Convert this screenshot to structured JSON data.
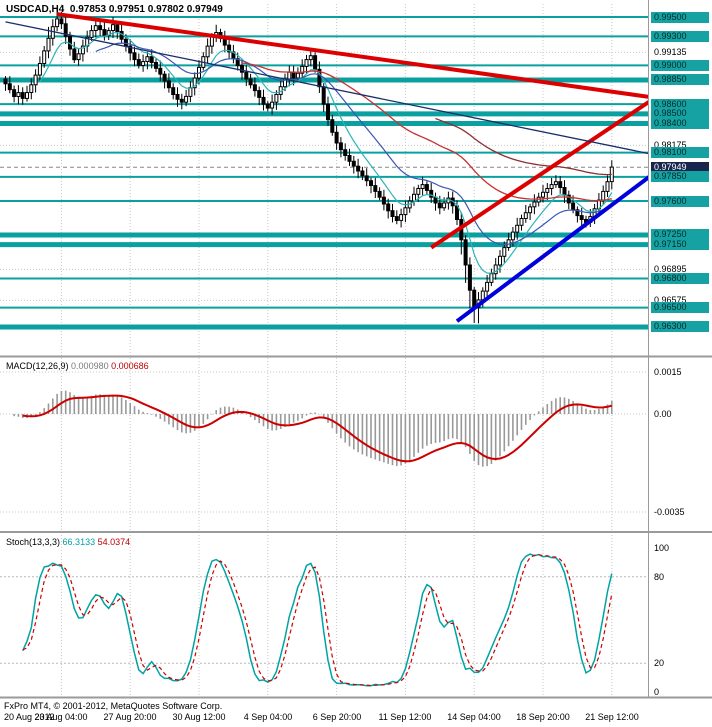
{
  "header": {
    "symbol": "USDCAD,H4",
    "open": "0.97853",
    "high": "0.97951",
    "low": "0.97802",
    "close": "0.97949"
  },
  "footer": {
    "copyright": "FxPro MT4, © 2001-2012, MetaQuotes Software Corp."
  },
  "indicators": {
    "macd": {
      "label": "MACD(12,26,9)",
      "value_main": "0.000980",
      "value_signal": "0.000686",
      "scale_labels": [
        {
          "text": "0.0015",
          "value": 0.0015
        },
        {
          "text": "0.00",
          "value": 0
        },
        {
          "text": "-0.0035",
          "value": -0.0035
        }
      ]
    },
    "stoch": {
      "label": "Stoch(13,3,3)",
      "value_main": "66.3133",
      "value_signal": "54.0374",
      "scale_labels": [
        {
          "text": "100",
          "value": 100
        },
        {
          "text": "80",
          "value": 80
        },
        {
          "text": "20",
          "value": 20
        },
        {
          "text": "0",
          "value": 0
        }
      ],
      "levels": [
        80,
        20
      ]
    }
  },
  "price_scale": {
    "labels": [
      {
        "text": "0.99500",
        "price": 0.995,
        "style": "level"
      },
      {
        "text": "0.99300",
        "price": 0.993,
        "style": "level"
      },
      {
        "text": "0.99135",
        "price": 0.99135,
        "style": "plain"
      },
      {
        "text": "0.99000",
        "price": 0.99,
        "style": "level"
      },
      {
        "text": "0.98850",
        "price": 0.9885,
        "style": "level-thick"
      },
      {
        "text": "0.98600",
        "price": 0.986,
        "style": "level"
      },
      {
        "text": "0.98500",
        "price": 0.985,
        "style": "level-thick"
      },
      {
        "text": "0.98400",
        "price": 0.984,
        "style": "level-thick"
      },
      {
        "text": "0.98175",
        "price": 0.98175,
        "style": "plain"
      },
      {
        "text": "0.98100",
        "price": 0.981,
        "style": "level"
      },
      {
        "text": "0.97949",
        "price": 0.97949,
        "style": "current"
      },
      {
        "text": "0.97850",
        "price": 0.9785,
        "style": "level"
      },
      {
        "text": "0.97600",
        "price": 0.976,
        "style": "level"
      },
      {
        "text": "0.97250",
        "price": 0.9725,
        "style": "level-thick"
      },
      {
        "text": "0.97150",
        "price": 0.9715,
        "style": "level-thick"
      },
      {
        "text": "0.96895",
        "price": 0.96895,
        "style": "plain"
      },
      {
        "text": "0.96800",
        "price": 0.968,
        "style": "level"
      },
      {
        "text": "0.96575",
        "price": 0.96575,
        "style": "plain"
      },
      {
        "text": "0.96500",
        "price": 0.965,
        "style": "level"
      },
      {
        "text": "0.96300",
        "price": 0.963,
        "style": "level-thick"
      }
    ]
  },
  "time_axis": {
    "labels": [
      {
        "text": "20 Aug 2012",
        "index": -3
      },
      {
        "text": "23 Aug 04:00",
        "index": 13
      },
      {
        "text": "27 Aug 20:00",
        "index": 29
      },
      {
        "text": "30 Aug 12:00",
        "index": 45
      },
      {
        "text": "4 Sep 04:00",
        "index": 61
      },
      {
        "text": "6 Sep 20:00",
        "index": 77
      },
      {
        "text": "11 Sep 12:00",
        "index": 93
      },
      {
        "text": "14 Sep 04:00",
        "index": 109
      },
      {
        "text": "18 Sep 20:00",
        "index": 125
      },
      {
        "text": "21 Sep 12:00",
        "index": 141
      }
    ]
  },
  "chart_data": {
    "type": "candlestick",
    "symbol": "USDCAD",
    "timeframe": "H4",
    "title": "USDCAD,H4 0.97853 0.97951 0.97802 0.97949",
    "ohlc_display": {
      "open": 0.97853,
      "high": 0.97951,
      "low": 0.97802,
      "close": 0.97949
    },
    "current_price": 0.97949,
    "ylim": [
      0.9602,
      0.9963
    ],
    "first_open": 0.9886,
    "closes": [
      0.9881,
      0.9875,
      0.9868,
      0.9872,
      0.9866,
      0.9872,
      0.988,
      0.989,
      0.9902,
      0.9915,
      0.9928,
      0.994,
      0.9948,
      0.9943,
      0.993,
      0.9917,
      0.9906,
      0.9912,
      0.992,
      0.9929,
      0.9936,
      0.9941,
      0.9937,
      0.9931,
      0.9936,
      0.9942,
      0.9935,
      0.9927,
      0.992,
      0.9913,
      0.9906,
      0.99,
      0.9904,
      0.9909,
      0.9903,
      0.9897,
      0.9891,
      0.9884,
      0.9877,
      0.987,
      0.9865,
      0.9862,
      0.9868,
      0.9877,
      0.9887,
      0.9898,
      0.9909,
      0.992,
      0.993,
      0.9934,
      0.9928,
      0.9921,
      0.9914,
      0.9907,
      0.99,
      0.9893,
      0.9886,
      0.988,
      0.9874,
      0.9867,
      0.986,
      0.9856,
      0.9862,
      0.987,
      0.9878,
      0.9886,
      0.9893,
      0.9887,
      0.9892,
      0.9899,
      0.9906,
      0.991,
      0.9896,
      0.9878,
      0.986,
      0.9844,
      0.9831,
      0.982,
      0.9813,
      0.9807,
      0.9801,
      0.9796,
      0.9791,
      0.9786,
      0.9781,
      0.9776,
      0.977,
      0.9764,
      0.9757,
      0.975,
      0.9744,
      0.974,
      0.9746,
      0.9753,
      0.976,
      0.9767,
      0.9773,
      0.9777,
      0.9771,
      0.9764,
      0.9758,
      0.9753,
      0.9758,
      0.9763,
      0.9755,
      0.9741,
      0.972,
      0.9694,
      0.9668,
      0.965,
      0.9658,
      0.9667,
      0.9676,
      0.9685,
      0.9694,
      0.9703,
      0.9712,
      0.972,
      0.9728,
      0.9735,
      0.9742,
      0.9748,
      0.9754,
      0.9759,
      0.9764,
      0.9769,
      0.9773,
      0.9777,
      0.978,
      0.9774,
      0.9766,
      0.9758,
      0.9751,
      0.9745,
      0.9741,
      0.9738,
      0.9744,
      0.9752,
      0.9761,
      0.977,
      0.978,
      0.9795
    ],
    "moving_averages": [
      {
        "period": 8,
        "color": "#2cb5b5",
        "width": 1.2
      },
      {
        "period": 21,
        "color": "#3a56b4",
        "width": 1.2
      },
      {
        "period": 55,
        "color": "#c83232",
        "width": 1.3
      },
      {
        "period": 100,
        "color": "#8b3030",
        "width": 1.3
      }
    ],
    "trendlines": [
      {
        "name": "descending-resistance-red",
        "i1": 12,
        "p1": 0.9953,
        "i2": 165,
        "p2": 0.9858,
        "color": "#dd0000",
        "width": 4
      },
      {
        "name": "ascending-support-red",
        "i1": 99,
        "p1": 0.9712,
        "i2": 165,
        "p2": 0.9908,
        "color": "#dd0000",
        "width": 4
      },
      {
        "name": "ascending-support-blue",
        "i1": 105,
        "p1": 0.9636,
        "i2": 165,
        "p2": 0.9836,
        "color": "#0000dd",
        "width": 4
      },
      {
        "name": "descending-channel-navy",
        "i1": 0,
        "p1": 0.9945,
        "i2": 165,
        "p2": 0.9795,
        "color": "#1a2d6b",
        "width": 1.3
      }
    ],
    "macd": {
      "fast": 12,
      "slow": 26,
      "signal": 9,
      "damping": 0.55,
      "current_main": 0.00098,
      "current_signal": 0.000686
    },
    "stochastic": {
      "k": 13,
      "slowing": 3,
      "d": 3,
      "current_main": 66.3133,
      "current_signal": 54.0374
    }
  },
  "colors": {
    "level_teal": "#0aa0a0",
    "current_line": "#888888",
    "grid": "#c8c8c8",
    "bull_fill": "#ffffff",
    "bear_fill": "#000000",
    "candle_stroke": "#000000",
    "macd_hist": "#999999",
    "macd_signal": "#cc0000",
    "stoch_main": "#00a3a3",
    "stoch_signal": "#cc0000",
    "divider": "#9a9a9a"
  }
}
